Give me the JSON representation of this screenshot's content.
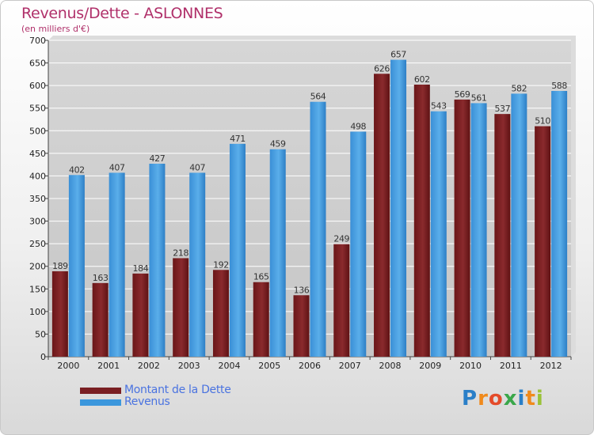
{
  "chart_data": {
    "type": "bar",
    "title": "Revenus/Dette - ASLONNES",
    "subtitle": "(en milliers d'€)",
    "categories": [
      "2000",
      "2001",
      "2002",
      "2003",
      "2004",
      "2005",
      "2006",
      "2007",
      "2008",
      "2009",
      "2010",
      "2011",
      "2012"
    ],
    "series": [
      {
        "name": "Montant de la Dette",
        "color": "#7a1f23",
        "values": [
          189,
          163,
          184,
          218,
          192,
          165,
          136,
          249,
          626,
          602,
          569,
          537,
          510
        ]
      },
      {
        "name": "Revenus",
        "color": "#3b97dd",
        "values": [
          402,
          407,
          427,
          407,
          471,
          459,
          564,
          498,
          657,
          543,
          561,
          582,
          588
        ]
      }
    ],
    "ylim": [
      0,
      700
    ],
    "yticks": [
      0,
      50,
      100,
      150,
      200,
      250,
      300,
      350,
      400,
      450,
      500,
      550,
      600,
      650,
      700
    ],
    "grid": true,
    "legend_position": "bottom-left"
  },
  "logo": {
    "letters": [
      "P",
      "r",
      "o",
      "x",
      "i",
      "t",
      "i"
    ],
    "colors": [
      "#2a7fc8",
      "#f08a1c",
      "#e44b2a",
      "#3aa74a",
      "#2a7fc8",
      "#f08a1c",
      "#9ac238"
    ]
  }
}
